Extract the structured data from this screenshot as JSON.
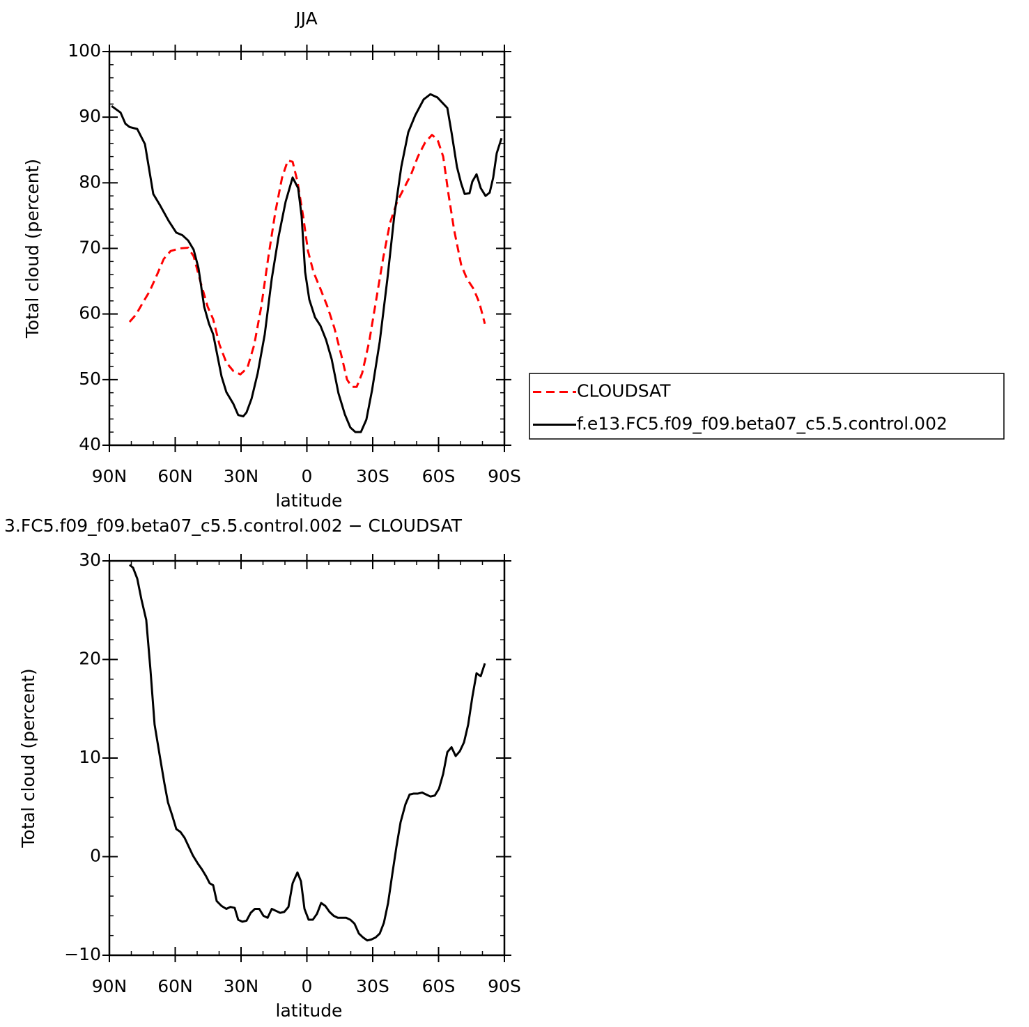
{
  "chart_data": [
    {
      "type": "line",
      "title": "JJA",
      "xlabel": "latitude",
      "ylabel": "Total cloud (percent)",
      "xlim": [
        90,
        -90
      ],
      "xticks": [
        {
          "value": 90,
          "label": "90N"
        },
        {
          "value": 60,
          "label": "60N"
        },
        {
          "value": 30,
          "label": "30N"
        },
        0,
        {
          "value": -30,
          "label": "30S"
        },
        {
          "value": -60,
          "label": "60S"
        },
        {
          "value": -90,
          "label": "90S"
        }
      ],
      "ylim": [
        40,
        100
      ],
      "yticks": [
        40,
        50,
        60,
        70,
        80,
        90,
        100
      ],
      "legend": "right",
      "series": [
        {
          "name": "CLOUDSAT",
          "color": "#ff0000",
          "linestyle": "dashed",
          "x": [
            80.8,
            77.9,
            74.8,
            71.6,
            68.4,
            65.2,
            62.1,
            57.9,
            54.1,
            51.6,
            48.4,
            45.2,
            42.7,
            39.8,
            36.7,
            33.5,
            30.3,
            27.1,
            24.0,
            20.8,
            17.6,
            14.4,
            11.3,
            8.7,
            6.5,
            4.3,
            1.7,
            -0.5,
            -3.0,
            -6.2,
            -9.4,
            -12.5,
            -15.7,
            -18.3,
            -20.5,
            -22.7,
            -25.2,
            -28.4,
            -31.6,
            -34.8,
            -37.9,
            -41.1,
            -44.3,
            -47.5,
            -50.6,
            -53.8,
            -57.0,
            -59.5,
            -62.1,
            -64.6,
            -67.1,
            -70.3,
            -72.9,
            -76.0,
            -78.6,
            -81.1
          ],
          "values": [
            58.8,
            59.9,
            61.7,
            63.5,
            65.9,
            68.4,
            69.6,
            70.0,
            70.1,
            68.8,
            64.8,
            61.1,
            59.2,
            55.3,
            52.6,
            51.3,
            50.8,
            51.8,
            55.3,
            61.1,
            68.6,
            75.5,
            80.8,
            83.4,
            83.2,
            80.2,
            74.9,
            69.6,
            66.4,
            63.8,
            61.1,
            57.9,
            53.7,
            50.0,
            48.9,
            48.9,
            51.0,
            55.8,
            62.2,
            68.6,
            73.9,
            77.1,
            79.2,
            81.3,
            84.0,
            86.1,
            87.3,
            86.6,
            84.0,
            78.1,
            72.8,
            67.5,
            65.4,
            63.8,
            61.7,
            58.5
          ]
        },
        {
          "name": "f.e13.FC5.f09_f09.beta07_c5.5.control.002",
          "color": "#000000",
          "linestyle": "solid",
          "x": [
            89.0,
            84.9,
            82.7,
            80.8,
            77.3,
            73.8,
            70.0,
            66.8,
            63.0,
            59.5,
            56.7,
            54.1,
            51.6,
            49.4,
            46.8,
            44.6,
            42.7,
            38.9,
            36.7,
            33.5,
            31.3,
            29.0,
            27.5,
            25.2,
            22.4,
            19.2,
            16.0,
            12.9,
            9.7,
            6.5,
            4.0,
            2.4,
            0.8,
            -1.1,
            -3.7,
            -6.2,
            -8.7,
            -11.3,
            -14.4,
            -17.3,
            -19.8,
            -22.1,
            -24.6,
            -27.1,
            -29.7,
            -33.2,
            -36.7,
            -39.8,
            -43.0,
            -46.2,
            -49.4,
            -53.2,
            -56.3,
            -59.5,
            -64.0,
            -65.9,
            -68.4,
            -70.3,
            -71.9,
            -74.1,
            -75.4,
            -77.3,
            -79.2,
            -81.4,
            -83.3,
            -84.9,
            -86.5,
            -88.7
          ],
          "values": [
            91.7,
            90.7,
            89.0,
            88.5,
            88.2,
            85.9,
            78.3,
            76.5,
            74.2,
            72.4,
            72.0,
            71.2,
            69.8,
            67.0,
            61.1,
            58.5,
            56.9,
            50.5,
            48.1,
            46.3,
            44.6,
            44.4,
            45.0,
            47.1,
            51.0,
            56.9,
            65.4,
            71.8,
            77.1,
            80.8,
            79.2,
            74.9,
            66.4,
            62.2,
            59.5,
            58.2,
            56.1,
            53.1,
            47.9,
            44.7,
            42.7,
            42.0,
            42.0,
            43.9,
            48.4,
            55.8,
            65.4,
            74.9,
            82.4,
            87.7,
            90.3,
            92.7,
            93.5,
            93.0,
            91.4,
            87.7,
            82.4,
            79.9,
            78.3,
            78.4,
            80.2,
            81.3,
            79.2,
            78.0,
            78.5,
            80.8,
            84.5,
            86.8
          ]
        }
      ]
    },
    {
      "type": "line",
      "title": "3.FC5.f09_f09.beta07_c5.5.control.002 − CLOUDSAT",
      "xlabel": "latitude",
      "ylabel": "Total cloud (percent)",
      "xlim": [
        90,
        -90
      ],
      "xticks": [
        {
          "value": 90,
          "label": "90N"
        },
        {
          "value": 60,
          "label": "60N"
        },
        {
          "value": 30,
          "label": "30N"
        },
        0,
        {
          "value": -30,
          "label": "30S"
        },
        {
          "value": -60,
          "label": "60S"
        },
        {
          "value": -90,
          "label": "90S"
        }
      ],
      "ylim": [
        -10,
        30
      ],
      "yticks": [
        {
          "value": -10,
          "label": "−10"
        },
        0,
        10,
        20,
        30
      ],
      "series": [
        {
          "color": "#000000",
          "linestyle": "solid",
          "x": [
            80.8,
            79.2,
            77.3,
            75.4,
            73.2,
            71.3,
            69.4,
            66.8,
            64.9,
            63.3,
            61.4,
            59.5,
            57.6,
            55.7,
            53.8,
            51.9,
            49.7,
            47.8,
            45.9,
            44.3,
            42.7,
            41.1,
            38.9,
            36.7,
            34.8,
            32.9,
            31.3,
            29.4,
            27.5,
            25.6,
            23.7,
            21.7,
            19.8,
            17.9,
            16.0,
            14.1,
            12.2,
            10.3,
            8.4,
            6.5,
            4.3,
            2.7,
            1.1,
            -0.8,
            -2.7,
            -4.6,
            -6.5,
            -8.4,
            -10.3,
            -12.2,
            -14.1,
            -16.0,
            -17.9,
            -19.8,
            -21.7,
            -23.7,
            -25.6,
            -27.5,
            -29.4,
            -31.3,
            -33.2,
            -35.1,
            -37.0,
            -38.9,
            -40.8,
            -42.7,
            -44.9,
            -46.8,
            -48.7,
            -50.6,
            -52.5,
            -54.4,
            -56.3,
            -58.3,
            -60.2,
            -62.1,
            -64.0,
            -65.9,
            -67.8,
            -69.7,
            -71.6,
            -73.5,
            -75.4,
            -77.3,
            -79.2,
            -81.1
          ],
          "values": [
            29.6,
            29.3,
            28.2,
            26.1,
            24.0,
            19.0,
            13.4,
            9.9,
            7.4,
            5.5,
            4.2,
            2.8,
            2.5,
            1.9,
            1.0,
            0.1,
            -0.7,
            -1.3,
            -2.0,
            -2.7,
            -2.9,
            -4.5,
            -5.0,
            -5.3,
            -5.1,
            -5.2,
            -6.4,
            -6.6,
            -6.5,
            -5.7,
            -5.3,
            -5.3,
            -6.0,
            -6.2,
            -5.3,
            -5.5,
            -5.7,
            -5.6,
            -5.1,
            -2.7,
            -1.6,
            -2.5,
            -5.3,
            -6.4,
            -6.4,
            -5.8,
            -4.7,
            -5.0,
            -5.6,
            -6.0,
            -6.2,
            -6.2,
            -6.2,
            -6.4,
            -6.8,
            -7.8,
            -8.2,
            -8.5,
            -8.4,
            -8.2,
            -7.8,
            -6.7,
            -4.7,
            -1.8,
            1.0,
            3.5,
            5.3,
            6.3,
            6.4,
            6.4,
            6.5,
            6.3,
            6.1,
            6.2,
            6.9,
            8.4,
            10.6,
            11.1,
            10.2,
            10.7,
            11.6,
            13.4,
            16.2,
            18.6,
            18.3,
            19.6
          ]
        }
      ]
    }
  ]
}
